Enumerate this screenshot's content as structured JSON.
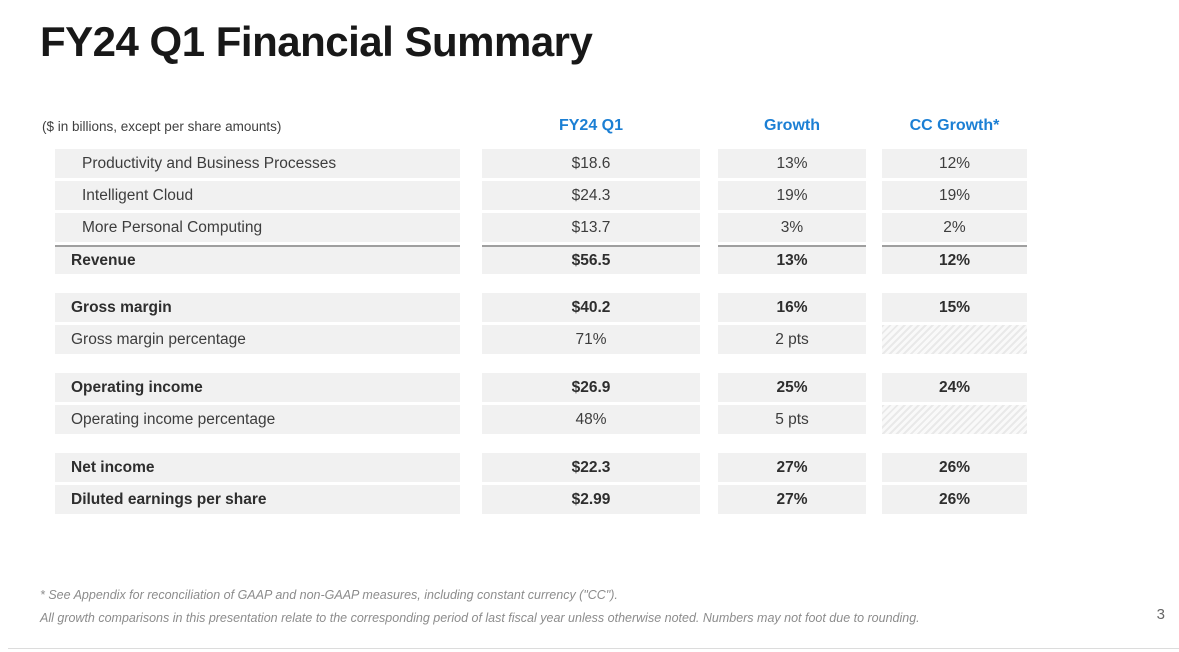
{
  "slide": {
    "title": "FY24 Q1 Financial Summary",
    "page_number": "3"
  },
  "colors": {
    "accent": "#1b7fd4",
    "row_background": "#f1f1f1",
    "topline": "#9f9f9f"
  },
  "table": {
    "units_note": "($ in billions, except per share amounts)",
    "columns": [
      "FY24 Q1",
      "Growth",
      "CC Growth*"
    ],
    "sections": [
      {
        "rows": [
          {
            "label": "Productivity and Business Processes",
            "fy24_q1": "$18.6",
            "growth": "13%",
            "cc_growth": "12%"
          },
          {
            "label": "Intelligent Cloud",
            "fy24_q1": "$24.3",
            "growth": "19%",
            "cc_growth": "19%"
          },
          {
            "label": "More Personal Computing",
            "fy24_q1": "$13.7",
            "growth": "3%",
            "cc_growth": "2%"
          },
          {
            "label": "Revenue",
            "fy24_q1": "$56.5",
            "growth": "13%",
            "cc_growth": "12%"
          }
        ]
      },
      {
        "rows": [
          {
            "label": "Gross margin",
            "fy24_q1": "$40.2",
            "growth": "16%",
            "cc_growth": "15%"
          },
          {
            "label": "Gross margin percentage",
            "fy24_q1": "71%",
            "growth": "2 pts",
            "cc_growth": ""
          }
        ]
      },
      {
        "rows": [
          {
            "label": "Operating income",
            "fy24_q1": "$26.9",
            "growth": "25%",
            "cc_growth": "24%"
          },
          {
            "label": "Operating income percentage",
            "fy24_q1": "48%",
            "growth": "5 pts",
            "cc_growth": ""
          }
        ]
      },
      {
        "rows": [
          {
            "label": "Net income",
            "fy24_q1": "$22.3",
            "growth": "27%",
            "cc_growth": "26%"
          },
          {
            "label": "Diluted earnings per share",
            "fy24_q1": "$2.99",
            "growth": "27%",
            "cc_growth": "26%"
          }
        ]
      }
    ]
  },
  "footnotes": [
    "* See Appendix for reconciliation of GAAP and non-GAAP measures, including constant currency (\"CC\").",
    "All growth comparisons in this presentation relate to the corresponding period of last fiscal year unless otherwise noted. Numbers may not foot due to rounding."
  ]
}
